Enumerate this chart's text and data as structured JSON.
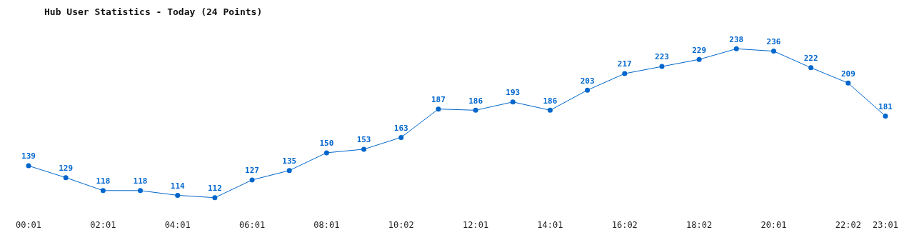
{
  "chart_data": {
    "type": "line",
    "title": "Hub User Statistics - Today (24 Points)",
    "categories": [
      "00:01",
      null,
      "02:01",
      null,
      "04:01",
      null,
      "06:01",
      null,
      "08:01",
      null,
      "10:02",
      null,
      "12:01",
      null,
      "14:01",
      null,
      "16:02",
      null,
      "18:02",
      null,
      "20:01",
      null,
      "22:02",
      "23:01"
    ],
    "series": [
      {
        "color": "#0066cc",
        "values": [
          139,
          129,
          118,
          118,
          114,
          112,
          127,
          135,
          150,
          153,
          163,
          187,
          186,
          193,
          186,
          203,
          217,
          223,
          229,
          238,
          236,
          222,
          209,
          181
        ]
      }
    ],
    "data_labels": true,
    "marker": "circle",
    "line_style": "solid",
    "grid": false,
    "legend": false
  }
}
